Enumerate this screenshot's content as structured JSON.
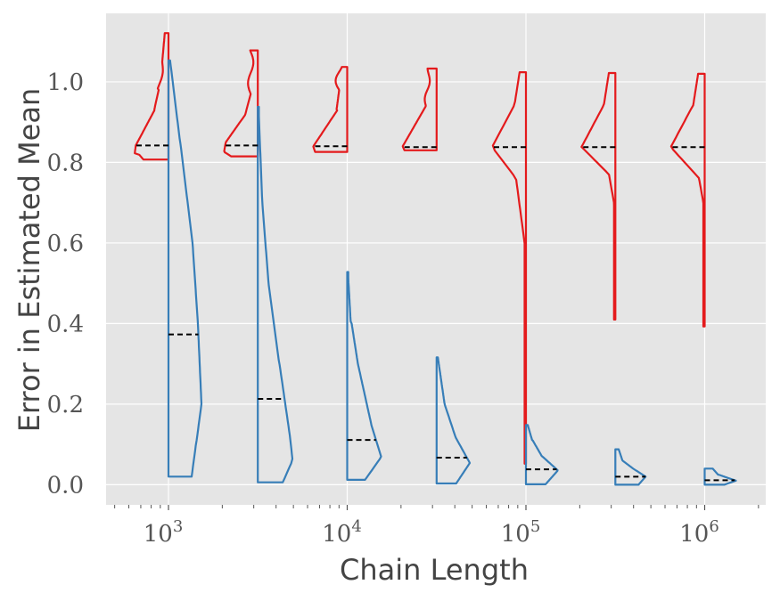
{
  "chart_data": {
    "type": "violin",
    "title": "",
    "xlabel": "Chain Length",
    "ylabel": "Error in Estimated Mean",
    "x_scale": "log",
    "x_ticks": [
      1000,
      10000,
      100000,
      1000000
    ],
    "x_tick_labels": [
      {
        "base": "10",
        "exp": "3"
      },
      {
        "base": "10",
        "exp": "4"
      },
      {
        "base": "10",
        "exp": "5"
      },
      {
        "base": "10",
        "exp": "6"
      }
    ],
    "y_ticks": [
      "0.0",
      "0.2",
      "0.4",
      "0.6",
      "0.8",
      "1.0"
    ],
    "y_tick_values": [
      0.0,
      0.2,
      0.4,
      0.6,
      0.8,
      1.0
    ],
    "ylim": [
      -0.05,
      1.17
    ],
    "grid": true,
    "background": "#e5e5e5",
    "x": [
      1000,
      3162,
      10000,
      31623,
      100000,
      316228,
      1000000
    ],
    "series": [
      {
        "color": "#e41a1c",
        "side": "left",
        "min": [
          0.807,
          0.815,
          0.826,
          0.83,
          0.052,
          0.41,
          0.393
        ],
        "max": [
          1.121,
          1.078,
          1.037,
          1.033,
          1.024,
          1.022,
          1.02
        ],
        "mean": [
          0.842,
          0.842,
          0.84,
          0.838,
          0.838,
          0.838,
          0.838
        ]
      },
      {
        "color": "#377eb8",
        "side": "right",
        "min": [
          0.02,
          0.006,
          0.012,
          0.003,
          0.001,
          0.0,
          0.0
        ],
        "max": [
          1.053,
          0.938,
          0.528,
          0.316,
          0.148,
          0.088,
          0.04
        ],
        "mean": [
          0.373,
          0.213,
          0.111,
          0.067,
          0.038,
          0.02,
          0.011
        ]
      }
    ]
  }
}
